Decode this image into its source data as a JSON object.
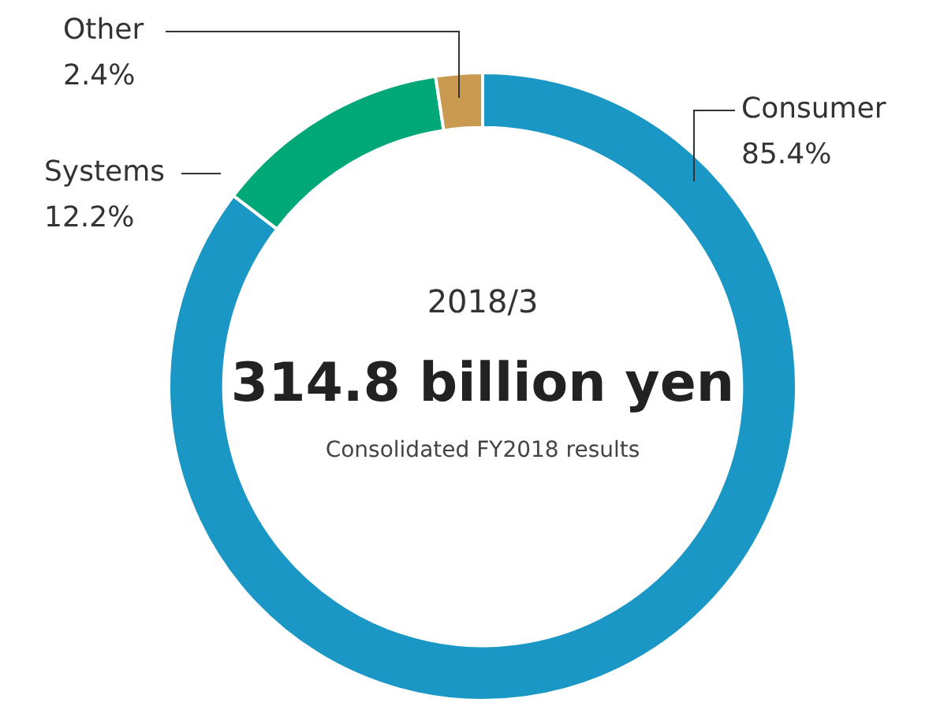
{
  "chart_data": {
    "type": "donut",
    "categories": [
      "Consumer",
      "Systems",
      "Other"
    ],
    "values": [
      85.4,
      12.2,
      2.4
    ],
    "colors": [
      "#1b97c6",
      "#00a878",
      "#c9994f"
    ],
    "value_labels": [
      "85.4%",
      "12.2%",
      "2.4%"
    ],
    "annotations": [
      "2018/3",
      "314.8 billion yen",
      "Consolidated FY2018 results"
    ],
    "legend": false
  }
}
